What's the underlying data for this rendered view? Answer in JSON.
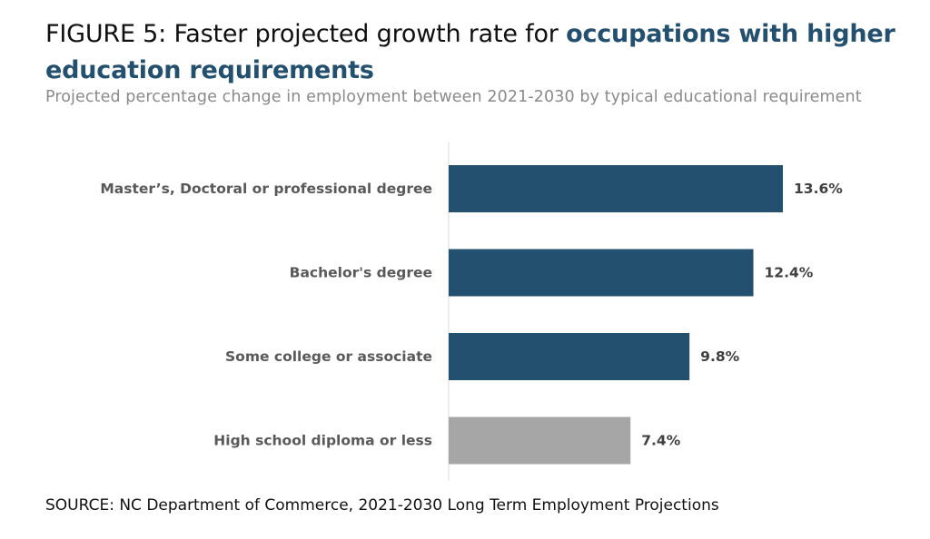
{
  "title": {
    "prefix": "FIGURE 5: Faster projected growth rate for ",
    "highlight": "occupations with higher education requirements"
  },
  "subtitle": "Projected percentage change in employment between 2021-2030 by typical educational requirement",
  "source": "SOURCE: NC Department of Commerce, 2021-2030 Long Term Employment Projections",
  "colors": {
    "primary": "#24506f",
    "muted": "#a6a6a6",
    "axis": "#d9d9d9",
    "label": "#595959",
    "value": "#404040"
  },
  "chart_data": {
    "type": "bar",
    "orientation": "horizontal",
    "categories": [
      "Master’s, Doctoral or professional degree",
      "Bachelor's degree",
      "Some college or associate",
      "High school diploma or less"
    ],
    "values": [
      13.6,
      12.4,
      9.8,
      7.4
    ],
    "value_labels": [
      "13.6%",
      "12.4%",
      "9.8%",
      "7.4%"
    ],
    "bar_colors": [
      "#24506f",
      "#24506f",
      "#24506f",
      "#a6a6a6"
    ],
    "xlim": [
      0,
      16
    ],
    "grid": false,
    "legend": "none"
  }
}
